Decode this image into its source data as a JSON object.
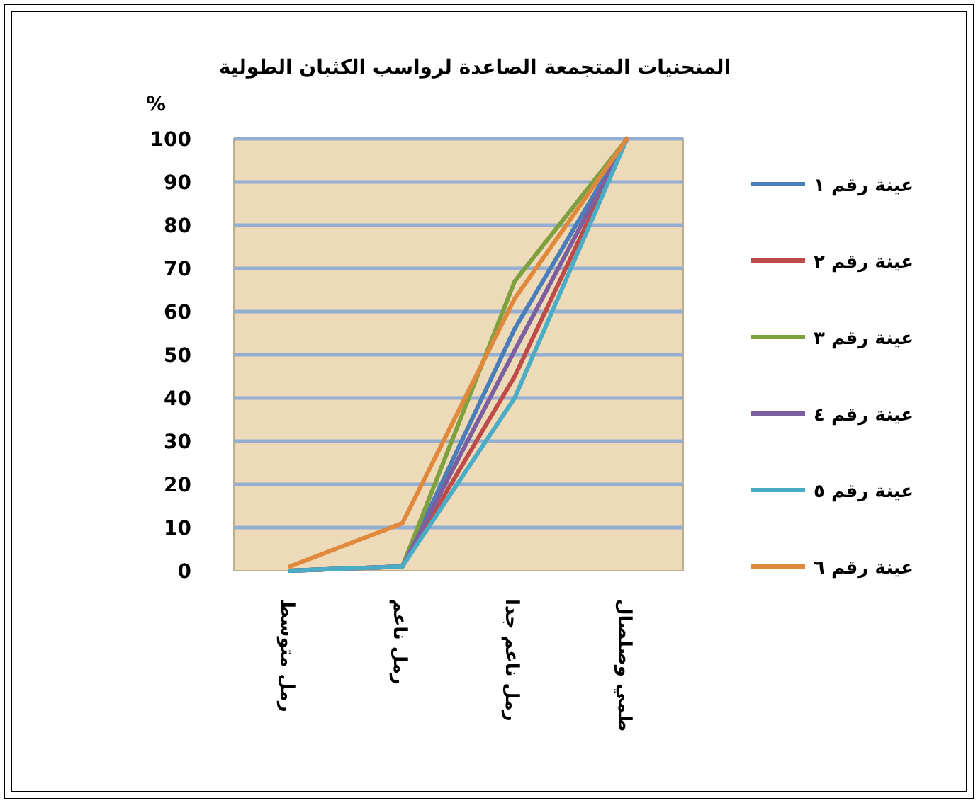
{
  "chart_data": {
    "type": "line",
    "title": "المنحنيات المتجمعة الصاعدة لرواسب الكثبان الطولية",
    "ylabel": "%",
    "categories": [
      "رمل متوسط",
      "رمل ناعم",
      "رمل ناعم جدا",
      "طمي وصلصال"
    ],
    "series": [
      {
        "name": "عينة رقم ١",
        "color": "#4a7ebb",
        "values": [
          0,
          1,
          56,
          100
        ]
      },
      {
        "name": "عينة رقم ٢",
        "color": "#be4b48",
        "values": [
          0,
          1,
          45,
          100
        ]
      },
      {
        "name": "عينة رقم ٣",
        "color": "#7ea03f",
        "values": [
          0,
          1,
          67,
          100
        ]
      },
      {
        "name": "عينة رقم ٤",
        "color": "#7d5fa0",
        "values": [
          0,
          1,
          51,
          100
        ]
      },
      {
        "name": "عينة رقم ٥",
        "color": "#4bacc6",
        "values": [
          0,
          1,
          40,
          100
        ]
      },
      {
        "name": "عينة رقم ٦",
        "color": "#e0883c",
        "values": [
          1,
          11,
          63,
          100
        ]
      }
    ],
    "ylim": [
      0,
      100
    ],
    "yticks": [
      0,
      10,
      20,
      30,
      40,
      50,
      60,
      70,
      80,
      90,
      100
    ],
    "grid": "y",
    "legend": "right"
  }
}
